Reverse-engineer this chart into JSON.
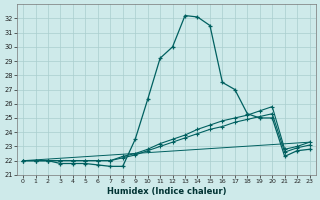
{
  "xlabel": "Humidex (Indice chaleur)",
  "bg_color": "#ceeaea",
  "grid_color": "#aacece",
  "line_color": "#006060",
  "xlim": [
    -0.5,
    23.5
  ],
  "ylim": [
    21,
    33
  ],
  "yticks": [
    21,
    22,
    23,
    24,
    25,
    26,
    27,
    28,
    29,
    30,
    31,
    32
  ],
  "xticks": [
    0,
    1,
    2,
    3,
    4,
    5,
    6,
    7,
    8,
    9,
    10,
    11,
    12,
    13,
    14,
    15,
    16,
    17,
    18,
    19,
    20,
    21,
    22,
    23
  ],
  "series1_x": [
    0,
    1,
    2,
    3,
    4,
    5,
    6,
    7,
    8,
    9,
    10,
    11,
    12,
    13,
    14,
    15,
    16,
    17,
    18,
    19,
    20,
    21,
    22,
    23
  ],
  "series1_y": [
    22.0,
    22.0,
    22.0,
    21.8,
    21.8,
    21.8,
    21.7,
    21.6,
    21.6,
    23.5,
    26.3,
    29.2,
    30.0,
    32.2,
    32.1,
    31.5,
    27.5,
    27.0,
    25.3,
    25.0,
    25.0,
    22.3,
    22.7,
    22.8
  ],
  "series2_x": [
    0,
    1,
    2,
    3,
    4,
    5,
    6,
    7,
    8,
    9,
    10,
    11,
    12,
    13,
    14,
    15,
    16,
    17,
    18,
    19,
    20,
    21,
    22,
    23
  ],
  "series2_y": [
    22.0,
    22.0,
    22.0,
    22.0,
    22.0,
    22.0,
    22.0,
    22.0,
    22.3,
    22.5,
    22.8,
    23.2,
    23.5,
    23.8,
    24.2,
    24.5,
    24.8,
    25.0,
    25.2,
    25.5,
    25.8,
    22.8,
    23.0,
    23.3
  ],
  "series3_x": [
    0,
    1,
    2,
    3,
    4,
    5,
    6,
    7,
    8,
    9,
    10,
    11,
    12,
    13,
    14,
    15,
    16,
    17,
    18,
    19,
    20,
    21,
    22,
    23
  ],
  "series3_y": [
    22.0,
    22.0,
    22.0,
    22.0,
    22.0,
    22.0,
    22.0,
    22.0,
    22.2,
    22.4,
    22.7,
    23.0,
    23.3,
    23.6,
    23.9,
    24.2,
    24.4,
    24.7,
    24.9,
    25.1,
    25.3,
    22.6,
    22.9,
    23.1
  ],
  "series4_x": [
    0,
    23
  ],
  "series4_y": [
    22.0,
    23.3
  ]
}
